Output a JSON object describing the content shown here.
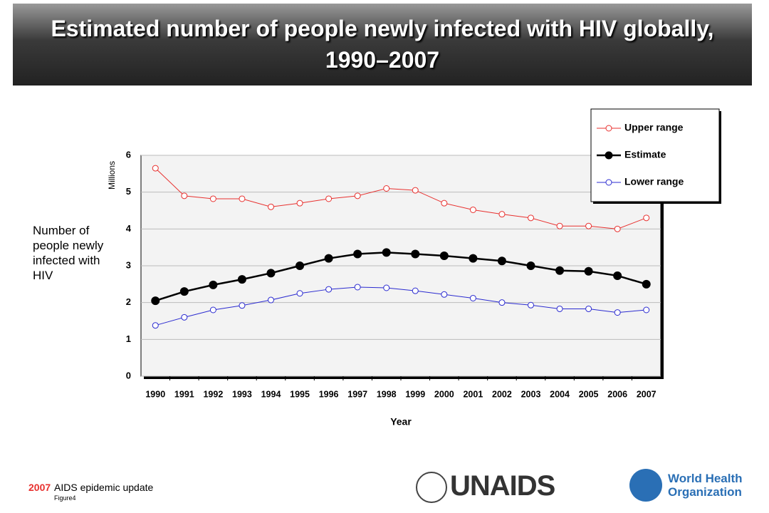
{
  "chart_data": {
    "type": "line",
    "title": "Estimated number of people newly infected with HIV globally, 1990–2007",
    "y_label": "Number of people newly infected with HIV",
    "y_unit": "Millions",
    "x_label": "Year",
    "categories": [
      "1990",
      "1991",
      "1992",
      "1993",
      "1994",
      "1995",
      "1996",
      "1997",
      "1998",
      "1999",
      "2000",
      "2001",
      "2002",
      "2003",
      "2004",
      "2005",
      "2006",
      "2007"
    ],
    "series": [
      {
        "name": "Upper range",
        "color": "#e8312f",
        "marker": "open",
        "values": [
          5.65,
          4.9,
          4.82,
          4.82,
          4.6,
          4.7,
          4.82,
          4.9,
          5.1,
          5.05,
          4.7,
          4.52,
          4.4,
          4.3,
          4.08,
          4.08,
          4.0,
          4.3
        ]
      },
      {
        "name": "Estimate",
        "color": "#000000",
        "marker": "filled",
        "values": [
          2.05,
          2.3,
          2.48,
          2.63,
          2.8,
          3.0,
          3.2,
          3.32,
          3.36,
          3.32,
          3.27,
          3.2,
          3.13,
          3.0,
          2.87,
          2.85,
          2.73,
          2.5
        ]
      },
      {
        "name": "Lower range",
        "color": "#2b2bd0",
        "marker": "open",
        "values": [
          1.38,
          1.6,
          1.8,
          1.92,
          2.07,
          2.25,
          2.36,
          2.42,
          2.4,
          2.32,
          2.22,
          2.12,
          2.0,
          1.93,
          1.83,
          1.83,
          1.73,
          1.8
        ]
      }
    ],
    "ylim": [
      0,
      6
    ],
    "yticks": [
      0,
      1,
      2,
      3,
      4,
      5,
      6
    ],
    "grid": true,
    "legend": "top-right"
  },
  "footer": {
    "year": "2007",
    "text": "AIDS epidemic update",
    "figure": "Figure4"
  },
  "logos": {
    "unaids": "UNAIDS",
    "who_line1": "World Health",
    "who_line2": "Organization"
  }
}
